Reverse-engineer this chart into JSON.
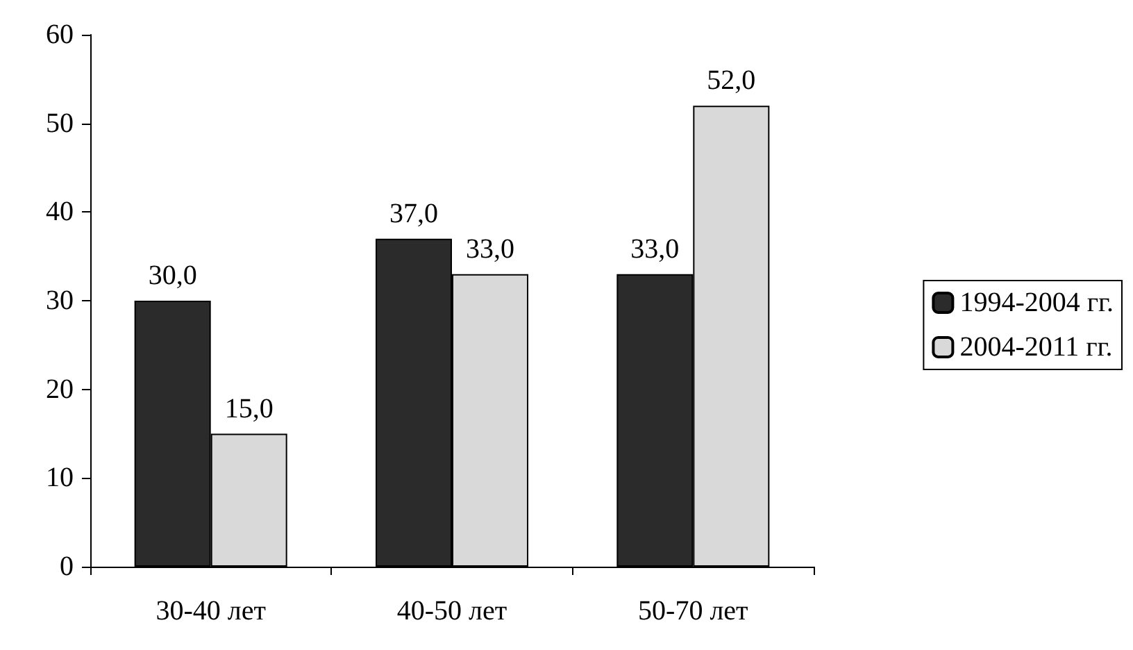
{
  "chart_data": {
    "type": "bar",
    "categories": [
      "30-40 лет",
      "40-50 лет",
      "50-70 лет"
    ],
    "series": [
      {
        "name": "1994-2004 гг.",
        "color": "#2b2b2b",
        "values": [
          30,
          37,
          33
        ],
        "value_labels": [
          "30,0",
          "37,0",
          "33,0"
        ]
      },
      {
        "name": "2004-2011 гг.",
        "color": "#d9d9d9",
        "values": [
          15,
          33,
          52
        ],
        "value_labels": [
          "15,0",
          "33,0",
          "52,0"
        ]
      }
    ],
    "ylim": [
      0,
      60
    ],
    "yticks": [
      0,
      10,
      20,
      30,
      40,
      50,
      60
    ],
    "grid": false,
    "legend": "right"
  }
}
